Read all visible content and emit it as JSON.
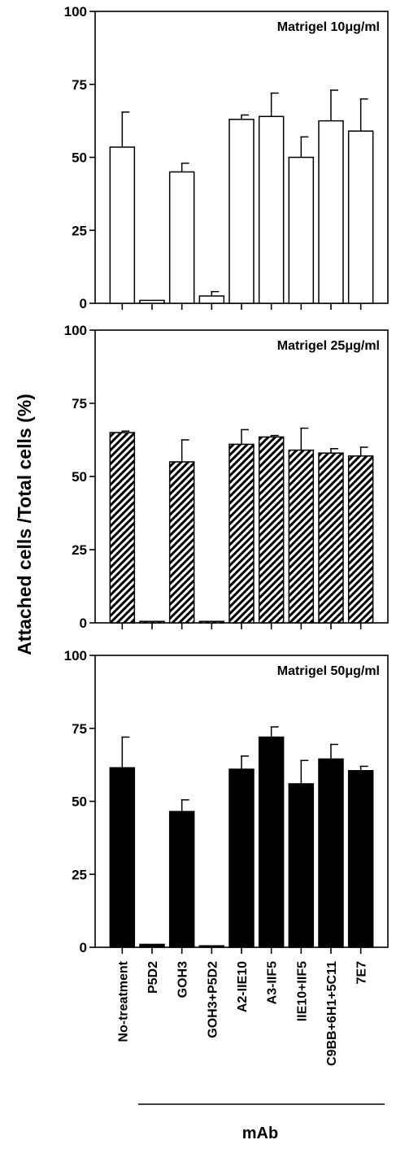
{
  "figure": {
    "ylabel": "Attached cells /Total cells (%)",
    "group_label": "mAb"
  },
  "chart_data": [
    {
      "type": "bar",
      "title": "Matrigel 10μg/ml",
      "fill": "open",
      "ylim": [
        0,
        100
      ],
      "yticks": [
        "0",
        "25",
        "50",
        "75",
        "100"
      ],
      "categories": [
        "No-treatment",
        "P5D2",
        "GOH3",
        "GOH3+P5D2",
        "A2-IIE10",
        "A3-IIF5",
        "IIE10+IIF5",
        "C9BB+6H1+5C11",
        "7E7"
      ],
      "values": [
        53.5,
        1,
        45,
        2.5,
        63,
        64,
        50,
        62.5,
        59
      ],
      "errors": [
        12,
        0,
        3,
        1.5,
        1.5,
        8,
        7,
        10.5,
        11
      ]
    },
    {
      "type": "bar",
      "title": "Matrigel 25μg/ml",
      "fill": "hatched",
      "ylim": [
        0,
        100
      ],
      "yticks": [
        "0",
        "25",
        "50",
        "75",
        "100"
      ],
      "categories": [
        "No-treatment",
        "P5D2",
        "GOH3",
        "GOH3+P5D2",
        "A2-IIE10",
        "A3-IIF5",
        "IIE10+IIF5",
        "C9BB+6H1+5C11",
        "7E7"
      ],
      "values": [
        65,
        0.5,
        55,
        0.5,
        61,
        63.5,
        59,
        58,
        57
      ],
      "errors": [
        0.5,
        0,
        7.5,
        0,
        5,
        0.5,
        7.5,
        1.5,
        3
      ]
    },
    {
      "type": "bar",
      "title": "Matrigel 50μg/ml",
      "fill": "solid",
      "ylim": [
        0,
        100
      ],
      "yticks": [
        "0",
        "25",
        "50",
        "75",
        "100"
      ],
      "categories": [
        "No-treatment",
        "P5D2",
        "GOH3",
        "GOH3+P5D2",
        "A2-IIE10",
        "A3-IIF5",
        "IIE10+IIF5",
        "C9BB+6H1+5C11",
        "7E7"
      ],
      "values": [
        61.5,
        1,
        46.5,
        0.5,
        61,
        72,
        56,
        64.5,
        60.5
      ],
      "errors": [
        10.5,
        0,
        4,
        0,
        4.5,
        3.5,
        8,
        5,
        1.5
      ]
    }
  ]
}
